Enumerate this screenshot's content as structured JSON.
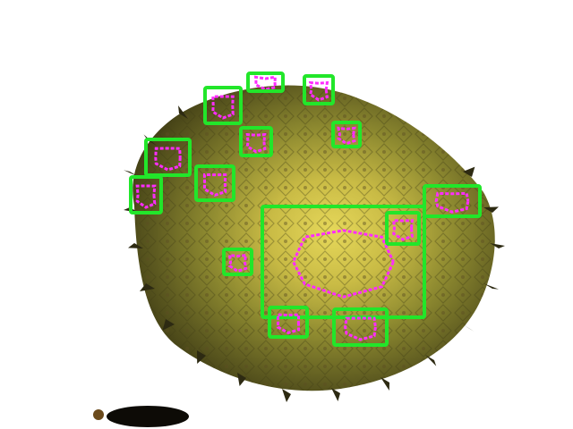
{
  "image": {
    "subject": "pineapple-base",
    "background_color": "#ffffff",
    "fruit_colors": {
      "center": "#d9c84a",
      "mid": "#9a8f2e",
      "edge": "#4a4618",
      "spike": "#2d2a12"
    },
    "annotation_colors": {
      "box": "#22e62a",
      "mask": "#ff2cff"
    }
  },
  "detections": [
    {
      "label": ""
    },
    {
      "label": ""
    },
    {
      "label": ""
    },
    {
      "label": ""
    },
    {
      "label": ""
    },
    {
      "label": ""
    },
    {
      "label": ""
    },
    {
      "label": ""
    },
    {
      "label": ""
    },
    {
      "label": ""
    },
    {
      "label": ""
    },
    {
      "label": ""
    },
    {
      "label": ""
    },
    {
      "label": ""
    },
    {
      "label": ""
    },
    {
      "label": ""
    }
  ]
}
